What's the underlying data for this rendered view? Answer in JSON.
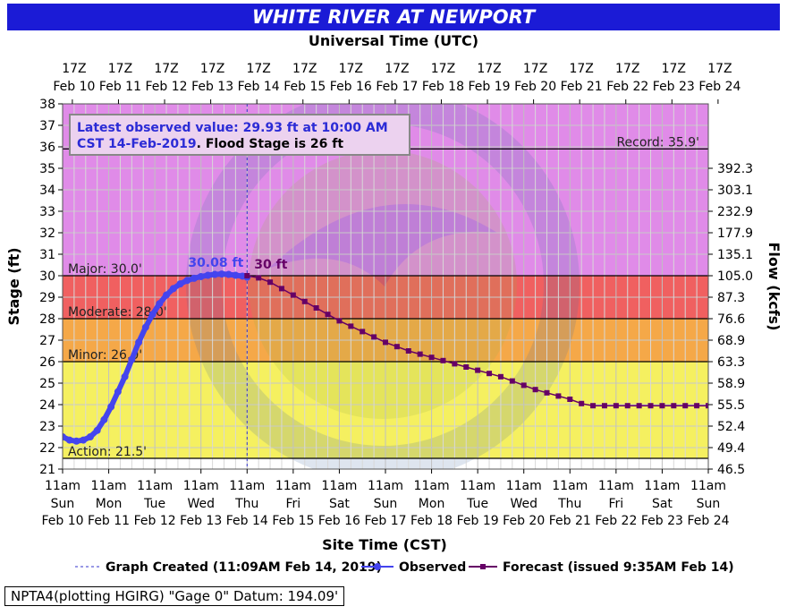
{
  "title": "WHITE RIVER AT NEWPORT",
  "footer": {
    "datum": "NPTA4(plotting HGIRG) \"Gage 0\" Datum: 194.09'"
  },
  "colors": {
    "title_bg": "#1b1bd6",
    "record_band": "#e08be8",
    "major_band": "#f06060",
    "moderate_band": "#f5a848",
    "minor_band": "#f5f060",
    "normal_band": "#ffffff",
    "observed": "#4444ee",
    "forecast": "#660066",
    "graph_created": "#3333cc"
  },
  "chart_data": {
    "type": "line",
    "top_axis_title": "Universal Time (UTC)",
    "xlabel": "Site Time (CST)",
    "ylabel": "Stage (ft)",
    "y2label": "Flow (kcfs)",
    "ylim": [
      21,
      38
    ],
    "yticks": [
      21,
      22,
      23,
      24,
      25,
      26,
      27,
      28,
      29,
      30,
      31,
      32,
      33,
      34,
      35,
      36,
      37,
      38
    ],
    "x_range": [
      "2019-02-10 11:00",
      "2019-02-24 11:00"
    ],
    "top_ticks": [
      {
        "l1": "17Z",
        "l2": "Feb 10"
      },
      {
        "l1": "17Z",
        "l2": "Feb 11"
      },
      {
        "l1": "17Z",
        "l2": "Feb 12"
      },
      {
        "l1": "17Z",
        "l2": "Feb 13"
      },
      {
        "l1": "17Z",
        "l2": "Feb 14"
      },
      {
        "l1": "17Z",
        "l2": "Feb 15"
      },
      {
        "l1": "17Z",
        "l2": "Feb 16"
      },
      {
        "l1": "17Z",
        "l2": "Feb 17"
      },
      {
        "l1": "17Z",
        "l2": "Feb 18"
      },
      {
        "l1": "17Z",
        "l2": "Feb 19"
      },
      {
        "l1": "17Z",
        "l2": "Feb 20"
      },
      {
        "l1": "17Z",
        "l2": "Feb 21"
      },
      {
        "l1": "17Z",
        "l2": "Feb 22"
      },
      {
        "l1": "17Z",
        "l2": "Feb 23"
      },
      {
        "l1": "17Z",
        "l2": "Feb 24"
      }
    ],
    "bottom_ticks": [
      {
        "l1": "11am",
        "l2": "Sun",
        "l3": "Feb 10"
      },
      {
        "l1": "11am",
        "l2": "Mon",
        "l3": "Feb 11"
      },
      {
        "l1": "11am",
        "l2": "Tue",
        "l3": "Feb 12"
      },
      {
        "l1": "11am",
        "l2": "Wed",
        "l3": "Feb 13"
      },
      {
        "l1": "11am",
        "l2": "Thu",
        "l3": "Feb 14"
      },
      {
        "l1": "11am",
        "l2": "Fri",
        "l3": "Feb 15"
      },
      {
        "l1": "11am",
        "l2": "Sat",
        "l3": "Feb 16"
      },
      {
        "l1": "11am",
        "l2": "Sun",
        "l3": "Feb 17"
      },
      {
        "l1": "11am",
        "l2": "Mon",
        "l3": "Feb 18"
      },
      {
        "l1": "11am",
        "l2": "Tue",
        "l3": "Feb 19"
      },
      {
        "l1": "11am",
        "l2": "Wed",
        "l3": "Feb 20"
      },
      {
        "l1": "11am",
        "l2": "Thu",
        "l3": "Feb 21"
      },
      {
        "l1": "11am",
        "l2": "Fri",
        "l3": "Feb 22"
      },
      {
        "l1": "11am",
        "l2": "Sat",
        "l3": "Feb 23"
      },
      {
        "l1": "11am",
        "l2": "Sun",
        "l3": "Feb 24"
      }
    ],
    "flow_ticks": [
      {
        "stage": 21.0,
        "label": "46.5"
      },
      {
        "stage": 22.0,
        "label": "49.4"
      },
      {
        "stage": 23.0,
        "label": "52.4"
      },
      {
        "stage": 24.0,
        "label": "55.5"
      },
      {
        "stage": 25.0,
        "label": "58.9"
      },
      {
        "stage": 26.0,
        "label": "63.3"
      },
      {
        "stage": 27.0,
        "label": "68.9"
      },
      {
        "stage": 28.0,
        "label": "76.6"
      },
      {
        "stage": 29.0,
        "label": "87.3"
      },
      {
        "stage": 30.0,
        "label": "105.0"
      },
      {
        "stage": 31.0,
        "label": "135.1"
      },
      {
        "stage": 32.0,
        "label": "177.9"
      },
      {
        "stage": 33.0,
        "label": "232.9"
      },
      {
        "stage": 34.0,
        "label": "303.1"
      },
      {
        "stage": 35.0,
        "label": "392.3"
      }
    ],
    "thresholds": [
      {
        "name": "Record",
        "label": "Record: 35.9'",
        "value": 35.9
      },
      {
        "name": "Major",
        "label": "Major: 30.0'",
        "value": 30.0
      },
      {
        "name": "Moderate",
        "label": "Moderate: 28.0'",
        "value": 28.0
      },
      {
        "name": "Minor",
        "label": "Minor: 26.0'",
        "value": 26.0
      },
      {
        "name": "Action",
        "label": "Action: 21.5'",
        "value": 21.5
      }
    ],
    "graph_created_day": 4.0,
    "series": [
      {
        "name": "Observed",
        "x_days": [
          0.0,
          0.15,
          0.3,
          0.45,
          0.6,
          0.75,
          0.9,
          1.05,
          1.2,
          1.35,
          1.5,
          1.65,
          1.8,
          1.95,
          2.1,
          2.25,
          2.4,
          2.55,
          2.7,
          2.85,
          3.0,
          3.15,
          3.3,
          3.45,
          3.6,
          3.75,
          3.9,
          4.0
        ],
        "values": [
          22.5,
          22.35,
          22.3,
          22.35,
          22.5,
          22.8,
          23.3,
          23.9,
          24.6,
          25.3,
          26.1,
          26.9,
          27.6,
          28.2,
          28.7,
          29.1,
          29.4,
          29.62,
          29.78,
          29.88,
          29.96,
          30.02,
          30.06,
          30.08,
          30.06,
          30.02,
          29.98,
          29.93
        ]
      },
      {
        "name": "Forecast",
        "x_days": [
          4.0,
          4.25,
          4.5,
          4.75,
          5.0,
          5.25,
          5.5,
          5.75,
          6.0,
          6.25,
          6.5,
          6.75,
          7.0,
          7.25,
          7.5,
          7.75,
          8.0,
          8.25,
          8.5,
          8.75,
          9.0,
          9.25,
          9.5,
          9.75,
          10.0,
          10.25,
          10.5,
          10.75,
          11.0,
          11.25,
          11.5,
          11.75,
          12.0,
          12.25,
          12.5,
          12.75,
          13.0,
          13.25,
          13.5,
          13.75,
          14.0
        ],
        "values": [
          30.0,
          29.9,
          29.7,
          29.4,
          29.1,
          28.8,
          28.5,
          28.2,
          27.9,
          27.65,
          27.4,
          27.15,
          26.9,
          26.7,
          26.5,
          26.35,
          26.2,
          26.05,
          25.9,
          25.75,
          25.6,
          25.45,
          25.3,
          25.1,
          24.9,
          24.7,
          24.55,
          24.4,
          24.25,
          24.05,
          23.95,
          23.95,
          23.95,
          23.95,
          23.95,
          23.95,
          23.95,
          23.95,
          23.95,
          23.95,
          23.95
        ]
      }
    ],
    "annotations": {
      "peak_observed": "30.08 ft",
      "peak_forecast": "30 ft",
      "latest_line1": "Latest observed value: 29.93 ft at 10:00 AM",
      "latest_line2a": "CST 14-Feb-2019",
      "latest_line2b": ". Flood Stage is 26 ft"
    },
    "legend": {
      "graph_created": "Graph Created (11:09AM Feb 14, 2019)",
      "observed": "Observed",
      "forecast": "Forecast (issued 9:35AM Feb 14)"
    },
    "grid": true
  }
}
